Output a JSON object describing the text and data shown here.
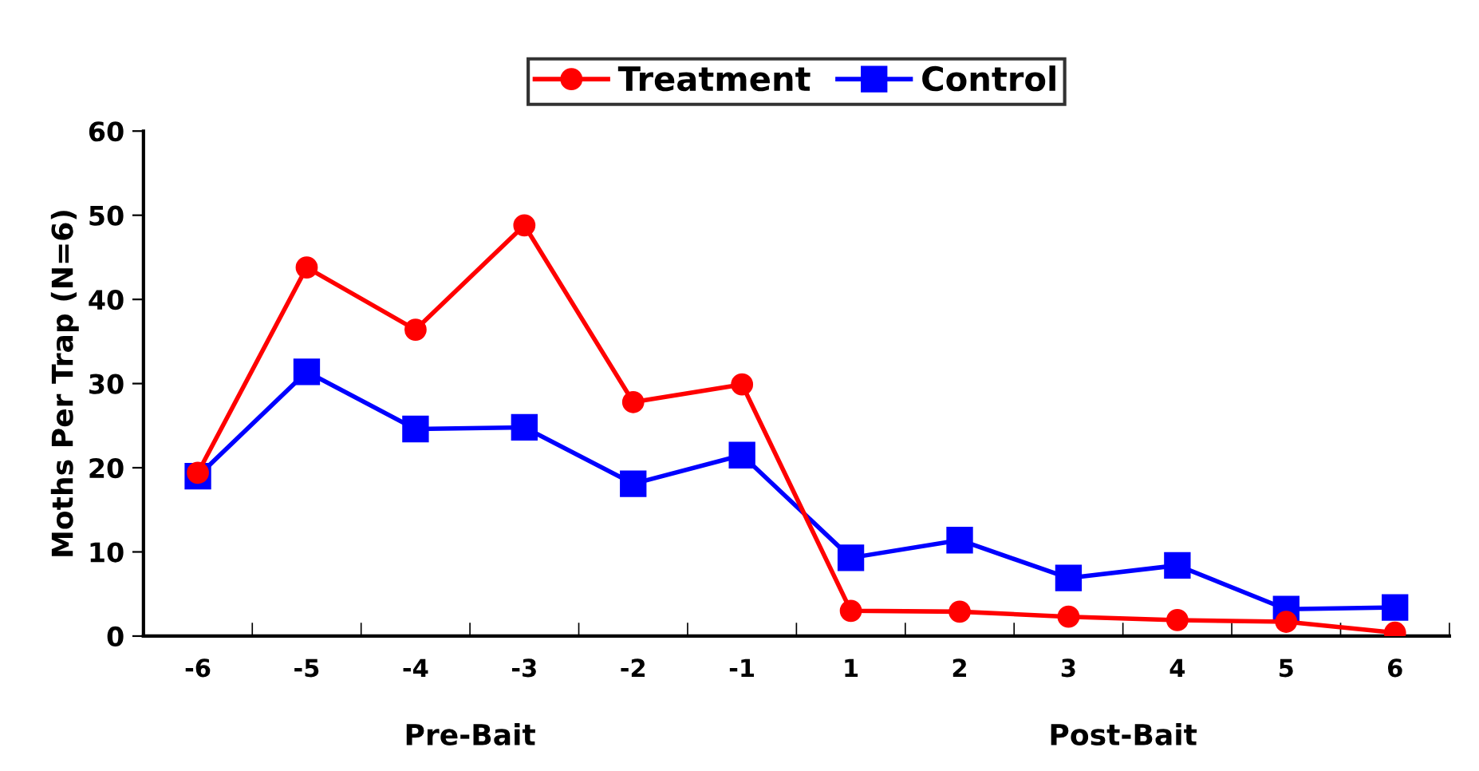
{
  "chart_data": {
    "type": "line",
    "ylabel": "Moths Per Trap (N=6)",
    "categories": [
      "-6",
      "-5",
      "-4",
      "-3",
      "-2",
      "-1",
      "1",
      "2",
      "3",
      "4",
      "5",
      "6"
    ],
    "series": [
      {
        "name": "Treatment",
        "color": "#ff0000",
        "marker": "circle",
        "values": [
          19.4,
          43.8,
          36.4,
          48.8,
          27.8,
          29.9,
          3.0,
          2.9,
          2.3,
          1.9,
          1.7,
          0.4
        ]
      },
      {
        "name": "Control",
        "color": "#0000ff",
        "marker": "square",
        "values": [
          19.0,
          31.4,
          24.6,
          24.8,
          18.1,
          21.5,
          9.3,
          11.4,
          6.9,
          8.4,
          3.2,
          3.4
        ]
      }
    ],
    "ylim": [
      0,
      60
    ],
    "yticks": [
      0,
      10,
      20,
      30,
      40,
      50,
      60
    ],
    "annotations": [
      "Pre-Bait",
      "Post-Bait"
    ],
    "legend": "top",
    "grid": false,
    "line_style": "solid"
  }
}
